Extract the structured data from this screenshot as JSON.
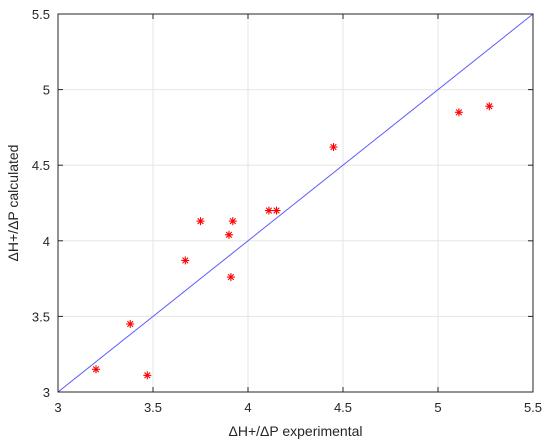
{
  "chart_data": {
    "type": "scatter",
    "title": "",
    "xlabel": "ΔH+/ΔP experimental",
    "ylabel": "ΔH+/ΔP calculated",
    "xlim": [
      3,
      5.5
    ],
    "ylim": [
      3,
      5.5
    ],
    "xticks": [
      "3",
      "3.5",
      "4",
      "4.5",
      "5",
      "5.5"
    ],
    "yticks": [
      "3",
      "3.5",
      "4",
      "4.5",
      "5",
      "5.5"
    ],
    "grid": true,
    "series": [
      {
        "marker": "*",
        "color": "#ff0000",
        "points": [
          {
            "x": 3.2,
            "y": 3.15
          },
          {
            "x": 3.38,
            "y": 3.45
          },
          {
            "x": 3.47,
            "y": 3.11
          },
          {
            "x": 3.67,
            "y": 3.87
          },
          {
            "x": 3.75,
            "y": 4.13
          },
          {
            "x": 3.9,
            "y": 4.04
          },
          {
            "x": 3.91,
            "y": 3.76
          },
          {
            "x": 3.92,
            "y": 4.13
          },
          {
            "x": 4.11,
            "y": 4.2
          },
          {
            "x": 4.15,
            "y": 4.2
          },
          {
            "x": 4.45,
            "y": 4.62
          },
          {
            "x": 5.11,
            "y": 4.85
          },
          {
            "x": 5.27,
            "y": 4.89
          }
        ]
      }
    ],
    "reference_line": {
      "color": "#5a5aff",
      "from": {
        "x": 3,
        "y": 3
      },
      "to": {
        "x": 5.5,
        "y": 5.5
      }
    }
  }
}
